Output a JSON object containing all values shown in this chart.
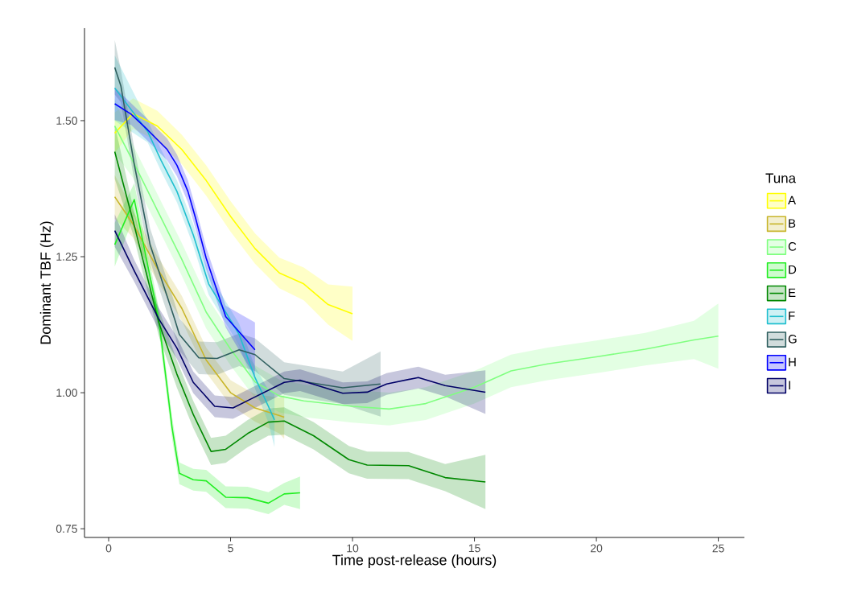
{
  "chart_data": {
    "type": "line",
    "xlabel": "Time post-release (hours)",
    "ylabel": "Dominant TBF (Hz)",
    "legend_title": "Tuna",
    "legend": "right",
    "xlim": [
      -0.99,
      26.07
    ],
    "ylim": [
      0.734,
      1.67
    ],
    "xticks": [
      0,
      5,
      10,
      15,
      20,
      25
    ],
    "yticks": [
      {
        "value": 0.75,
        "label": "0.75"
      },
      {
        "value": 1.0,
        "label": "1.00"
      },
      {
        "value": 1.25,
        "label": "1.25"
      },
      {
        "value": 1.5,
        "label": "1.50"
      }
    ],
    "series": [
      {
        "name": "A",
        "color": "#ffff00",
        "x": [
          0.25,
          1,
          2,
          3,
          4,
          5,
          6,
          7,
          8,
          9,
          10
        ],
        "values": [
          1.477,
          1.513,
          1.49,
          1.447,
          1.39,
          1.324,
          1.265,
          1.22,
          1.2,
          1.162,
          1.145
        ],
        "lower": [
          1.44,
          1.485,
          1.462,
          1.42,
          1.362,
          1.296,
          1.237,
          1.192,
          1.17,
          1.125,
          1.095
        ],
        "upper": [
          1.515,
          1.541,
          1.518,
          1.474,
          1.418,
          1.352,
          1.293,
          1.248,
          1.23,
          1.199,
          1.195
        ]
      },
      {
        "name": "B",
        "color": "#c8b52a",
        "x": [
          0.25,
          1,
          2,
          3,
          4,
          5,
          6,
          7,
          7.2
        ],
        "values": [
          1.36,
          1.31,
          1.228,
          1.155,
          1.06,
          1.0,
          0.972,
          0.958,
          0.955
        ],
        "lower": [
          1.32,
          1.285,
          1.205,
          1.132,
          1.037,
          0.977,
          0.947,
          0.925,
          0.915
        ],
        "upper": [
          1.4,
          1.335,
          1.251,
          1.178,
          1.083,
          1.023,
          0.997,
          0.991,
          0.995
        ]
      },
      {
        "name": "C",
        "color": "#80ff80",
        "x": [
          0.25,
          1,
          2,
          3,
          4,
          5,
          6,
          7,
          8,
          10,
          11.5,
          13,
          15,
          16.5,
          18,
          20,
          22,
          24,
          25
        ],
        "values": [
          1.49,
          1.425,
          1.335,
          1.245,
          1.148,
          1.08,
          1.02,
          0.994,
          0.985,
          0.975,
          0.97,
          0.98,
          1.01,
          1.04,
          1.053,
          1.066,
          1.08,
          1.097,
          1.104
        ],
        "lower": [
          1.44,
          1.395,
          1.305,
          1.215,
          1.118,
          1.05,
          0.99,
          0.964,
          0.955,
          0.945,
          0.94,
          0.95,
          0.98,
          1.01,
          1.023,
          1.036,
          1.05,
          1.062,
          1.044
        ],
        "upper": [
          1.54,
          1.455,
          1.365,
          1.275,
          1.178,
          1.11,
          1.05,
          1.024,
          1.015,
          1.005,
          1.0,
          1.01,
          1.04,
          1.07,
          1.083,
          1.096,
          1.11,
          1.132,
          1.164
        ]
      },
      {
        "name": "D",
        "color": "#22ee22",
        "x": [
          0.25,
          1.05,
          2.05,
          2.6,
          2.9,
          3.47,
          4.0,
          4.8,
          5.7,
          6.55,
          7.2,
          7.85
        ],
        "values": [
          1.272,
          1.355,
          1.136,
          0.936,
          0.852,
          0.84,
          0.838,
          0.808,
          0.807,
          0.797,
          0.814,
          0.816
        ],
        "lower": [
          1.232,
          1.325,
          1.116,
          0.916,
          0.832,
          0.82,
          0.818,
          0.788,
          0.787,
          0.777,
          0.794,
          0.786
        ],
        "upper": [
          1.312,
          1.385,
          1.156,
          0.956,
          0.872,
          0.86,
          0.858,
          0.828,
          0.827,
          0.817,
          0.834,
          0.846
        ]
      },
      {
        "name": "E",
        "color": "#008800",
        "x": [
          0.25,
          1,
          2.05,
          2.8,
          3.47,
          4.2,
          4.8,
          5.7,
          6.55,
          7.2,
          8.4,
          9.85,
          10.6,
          12.3,
          13.8,
          15.45
        ],
        "values": [
          1.443,
          1.316,
          1.13,
          1.034,
          0.96,
          0.892,
          0.896,
          0.925,
          0.946,
          0.948,
          0.921,
          0.877,
          0.867,
          0.866,
          0.844,
          0.836
        ],
        "lower": [
          1.393,
          1.291,
          1.105,
          1.009,
          0.935,
          0.867,
          0.871,
          0.9,
          0.921,
          0.923,
          0.896,
          0.852,
          0.842,
          0.841,
          0.819,
          0.786
        ],
        "upper": [
          1.493,
          1.341,
          1.155,
          1.059,
          0.985,
          0.917,
          0.921,
          0.95,
          0.971,
          0.973,
          0.946,
          0.902,
          0.892,
          0.891,
          0.869,
          0.886
        ]
      },
      {
        "name": "F",
        "color": "#1fbfcf",
        "x": [
          0.25,
          1.6,
          2.15,
          2.8,
          3.47,
          4.1,
          5.35,
          6.0,
          6.55,
          6.8
        ],
        "values": [
          1.56,
          1.48,
          1.427,
          1.37,
          1.29,
          1.2,
          1.107,
          1.028,
          0.975,
          0.95
        ],
        "lower": [
          1.5,
          1.46,
          1.407,
          1.35,
          1.27,
          1.18,
          1.087,
          1.008,
          0.945,
          0.9
        ],
        "upper": [
          1.62,
          1.5,
          1.447,
          1.39,
          1.31,
          1.22,
          1.127,
          1.048,
          1.005,
          1.0
        ]
      },
      {
        "name": "G",
        "color": "#2f5f5f",
        "x": [
          0.25,
          0.5,
          1.05,
          1.7,
          2.7,
          2.9,
          3.7,
          4.45,
          5.35,
          6.0,
          7.2,
          9.6,
          11.15
        ],
        "values": [
          1.598,
          1.564,
          1.42,
          1.272,
          1.136,
          1.107,
          1.064,
          1.063,
          1.079,
          1.07,
          1.026,
          1.009,
          1.016
        ],
        "lower": [
          1.548,
          1.534,
          1.39,
          1.242,
          1.106,
          1.077,
          1.034,
          1.033,
          1.049,
          1.04,
          0.996,
          0.979,
          0.956
        ],
        "upper": [
          1.648,
          1.594,
          1.45,
          1.302,
          1.166,
          1.137,
          1.094,
          1.093,
          1.109,
          1.1,
          1.056,
          1.039,
          1.076
        ]
      },
      {
        "name": "H",
        "color": "#0000ff",
        "x": [
          0.25,
          0.92,
          1.6,
          2.4,
          2.8,
          3.25,
          3.57,
          4.0,
          4.8,
          6.0
        ],
        "values": [
          1.531,
          1.512,
          1.483,
          1.447,
          1.418,
          1.37,
          1.32,
          1.247,
          1.14,
          1.079
        ],
        "lower": [
          1.501,
          1.492,
          1.463,
          1.427,
          1.398,
          1.35,
          1.3,
          1.227,
          1.12,
          1.029
        ],
        "upper": [
          1.561,
          1.532,
          1.503,
          1.467,
          1.438,
          1.39,
          1.34,
          1.267,
          1.16,
          1.129
        ]
      },
      {
        "name": "I",
        "color": "#000066",
        "x": [
          0.25,
          1.05,
          2.05,
          2.8,
          3.47,
          4.35,
          5.1,
          5.9,
          7.2,
          7.85,
          9.6,
          10.6,
          11.4,
          12.7,
          13.8,
          15.45
        ],
        "values": [
          1.298,
          1.224,
          1.136,
          1.082,
          1.019,
          0.975,
          0.972,
          0.99,
          1.019,
          1.023,
          0.999,
          1.001,
          1.016,
          1.028,
          1.013,
          1.001
        ],
        "lower": [
          1.268,
          1.204,
          1.116,
          1.062,
          0.999,
          0.955,
          0.952,
          0.97,
          0.999,
          1.003,
          0.979,
          0.981,
          0.996,
          1.008,
          0.993,
          0.961
        ],
        "upper": [
          1.328,
          1.244,
          1.156,
          1.102,
          1.039,
          0.995,
          0.992,
          1.01,
          1.039,
          1.043,
          1.019,
          1.021,
          1.036,
          1.048,
          1.033,
          1.041
        ]
      }
    ]
  }
}
